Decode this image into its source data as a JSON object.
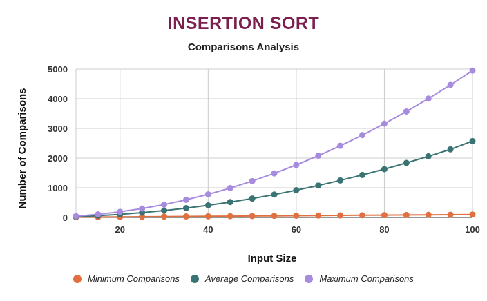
{
  "title": "INSERTION SORT",
  "subtitle": "Comparisons Analysis",
  "chart_data": {
    "type": "line",
    "xlabel": "Input Size",
    "ylabel": "Number of Comparisons",
    "xlim": [
      10,
      100
    ],
    "ylim": [
      0,
      5000
    ],
    "xticks": [
      "20",
      "40",
      "60",
      "80",
      "100"
    ],
    "yticks": [
      "0",
      "1000",
      "2000",
      "3000",
      "4000",
      "5000"
    ],
    "grid": true,
    "legend_position": "bottom",
    "x": [
      10,
      15,
      20,
      25,
      30,
      35,
      40,
      45,
      50,
      55,
      60,
      65,
      70,
      75,
      80,
      85,
      90,
      95,
      100
    ],
    "series": [
      {
        "name": "Minimum Comparisons",
        "color": "#e07040",
        "values": [
          9,
          14,
          19,
          24,
          29,
          34,
          39,
          44,
          49,
          54,
          59,
          64,
          69,
          74,
          79,
          84,
          89,
          94,
          99
        ]
      },
      {
        "name": "Average Comparisons",
        "color": "#3a7373",
        "values": [
          27,
          59,
          104,
          162,
          232,
          314,
          410,
          518,
          638,
          772,
          918,
          1076,
          1248,
          1432,
          1628,
          1838,
          2060,
          2296,
          2574
        ]
      },
      {
        "name": "Maximum Comparisons",
        "color": "#a78bdf",
        "values": [
          45,
          105,
          190,
          300,
          435,
          595,
          780,
          990,
          1225,
          1485,
          1770,
          2080,
          2415,
          2775,
          3160,
          3570,
          4005,
          4465,
          4950
        ]
      }
    ]
  }
}
